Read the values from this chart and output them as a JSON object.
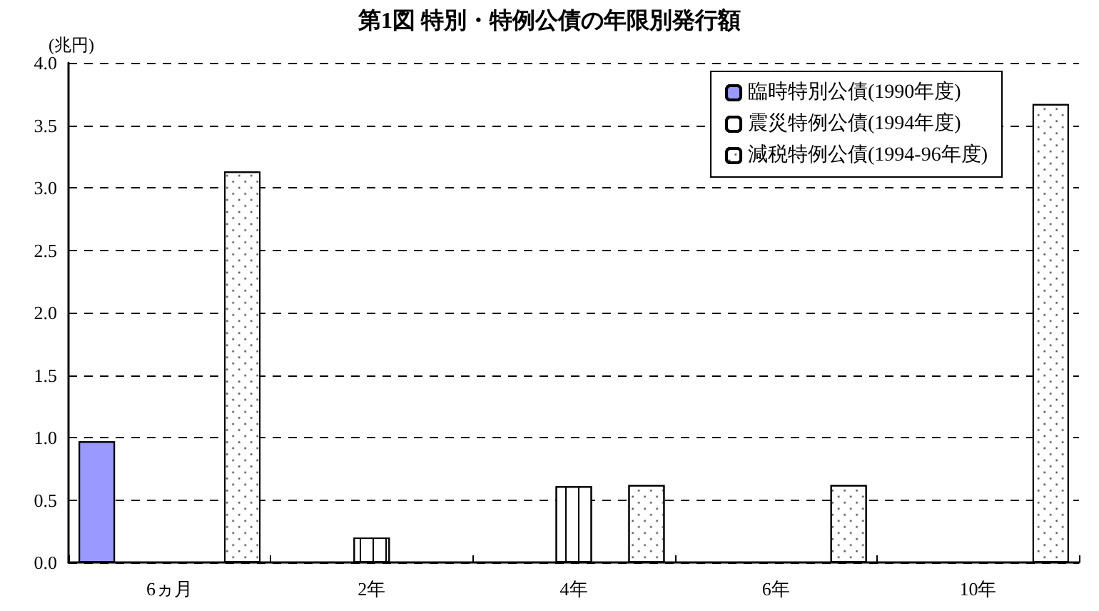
{
  "chart_data": {
    "type": "bar",
    "title": "第1図 特別・特例公債の年限別発行額",
    "ylabel": "(兆円)",
    "categories": [
      "6ヵ月",
      "2年",
      "4年",
      "6年",
      "10年"
    ],
    "series": [
      {
        "name": "臨時特別公債(1990年度)",
        "color": "#9999ff",
        "values": [
          0.97,
          null,
          null,
          null,
          null
        ]
      },
      {
        "name": "震災特例公債(1994年度)",
        "color": "#ffffff",
        "values": [
          null,
          0.2,
          0.61,
          null,
          null
        ]
      },
      {
        "name": "減税特例公債(1994-96年度)",
        "color": "#ffffff",
        "values": [
          3.13,
          null,
          0.62,
          0.62,
          3.67
        ]
      }
    ],
    "ylim": [
      0,
      4
    ],
    "yticks": [
      {
        "value": 0,
        "label": "0.0"
      },
      {
        "value": 0.5,
        "label": "0.5"
      },
      {
        "value": 1,
        "label": "1.0"
      },
      {
        "value": 1.5,
        "label": "1.5"
      },
      {
        "value": 2,
        "label": "2.0"
      },
      {
        "value": 2.5,
        "label": "2.5"
      },
      {
        "value": 3,
        "label": "3.0"
      },
      {
        "value": 3.5,
        "label": "3.5"
      },
      {
        "value": 4,
        "label": "4.0"
      }
    ],
    "grid": "y",
    "legend": "top right"
  }
}
